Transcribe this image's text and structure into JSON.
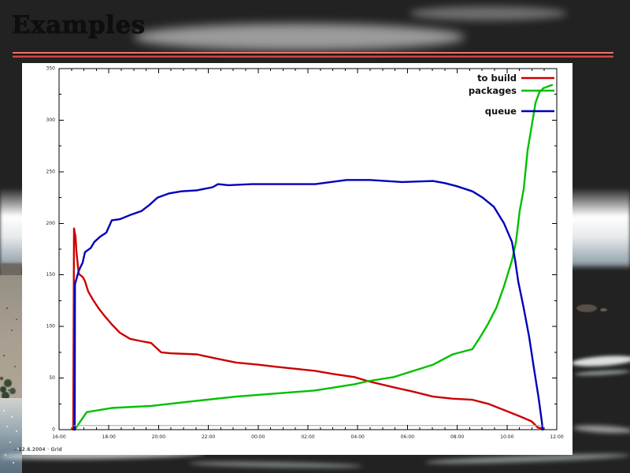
{
  "slide": {
    "title": "Examples",
    "footer_note": "– 12.6.2004 · Grid"
  },
  "colors": {
    "divider_red": "#c94b44",
    "divider_dark": "#27100e",
    "series_to_build": "#cc0000",
    "series_packages": "#00c000",
    "series_queue": "#0000bb",
    "axis": "#000000",
    "tick_label": "#222222"
  },
  "chart": {
    "legend": {
      "items": [
        {
          "label": "to build",
          "color": "#cc0000"
        },
        {
          "label": "packages",
          "color": "#00c000"
        },
        {
          "label": "queue",
          "color": "#0000bb"
        }
      ]
    }
  },
  "chart_data": {
    "type": "line",
    "title": "",
    "xlabel": "",
    "ylabel": "",
    "grid": false,
    "legend_position": "top-right-inside",
    "x_axis": {
      "type": "time",
      "range": [
        0,
        20
      ],
      "tick_hours": [
        0,
        2,
        4,
        6,
        8,
        10,
        12,
        14,
        16,
        18,
        20
      ],
      "labels": [
        "16:00",
        "18:00",
        "20:00",
        "22:00",
        "00:00",
        "02:00",
        "04:00",
        "06:00",
        "08:00",
        "10:00",
        "12:00"
      ],
      "minor_step": 0.5
    },
    "y_axis": {
      "min": 0,
      "max": 350,
      "tick_step": 50,
      "minor_step": 25,
      "labels": [
        "0",
        "50",
        "100",
        "150",
        "200",
        "250",
        "300",
        "350"
      ]
    },
    "series": [
      {
        "name": "to build",
        "color": "#cc0000",
        "width": 2.4,
        "points": [
          [
            0.57,
            0
          ],
          [
            0.6,
            195
          ],
          [
            0.66,
            187
          ],
          [
            0.7,
            172
          ],
          [
            0.79,
            151
          ],
          [
            0.95,
            148
          ],
          [
            1.04,
            144
          ],
          [
            1.17,
            134
          ],
          [
            1.36,
            126
          ],
          [
            1.58,
            118
          ],
          [
            1.8,
            111
          ],
          [
            2.12,
            102
          ],
          [
            2.44,
            94
          ],
          [
            2.85,
            88
          ],
          [
            3.26,
            86
          ],
          [
            3.7,
            84
          ],
          [
            4.1,
            75
          ],
          [
            4.5,
            74
          ],
          [
            5.54,
            73
          ],
          [
            6.3,
            69
          ],
          [
            7.12,
            65
          ],
          [
            8.0,
            63
          ],
          [
            8.7,
            61
          ],
          [
            9.5,
            59
          ],
          [
            10.29,
            57
          ],
          [
            11.0,
            54
          ],
          [
            11.87,
            51
          ],
          [
            12.41,
            47
          ],
          [
            13.45,
            41
          ],
          [
            14.2,
            37
          ],
          [
            15.03,
            32
          ],
          [
            15.8,
            30
          ],
          [
            16.61,
            29
          ],
          [
            17.25,
            25
          ],
          [
            17.88,
            19
          ],
          [
            18.51,
            13
          ],
          [
            18.99,
            8
          ],
          [
            19.24,
            2
          ],
          [
            19.46,
            1
          ]
        ]
      },
      {
        "name": "packages",
        "color": "#00c000",
        "width": 2.4,
        "points": [
          [
            0.63,
            0
          ],
          [
            1.11,
            17
          ],
          [
            2.12,
            21
          ],
          [
            3.7,
            23
          ],
          [
            5.54,
            28
          ],
          [
            7.12,
            32
          ],
          [
            8.7,
            35
          ],
          [
            10.29,
            38
          ],
          [
            11.87,
            44
          ],
          [
            12.41,
            47
          ],
          [
            13.45,
            51
          ],
          [
            15.03,
            63
          ],
          [
            15.82,
            73
          ],
          [
            16.61,
            78
          ],
          [
            16.93,
            90
          ],
          [
            17.25,
            103
          ],
          [
            17.57,
            118
          ],
          [
            17.88,
            139
          ],
          [
            18.2,
            164
          ],
          [
            18.36,
            182
          ],
          [
            18.51,
            212
          ],
          [
            18.67,
            233
          ],
          [
            18.83,
            271
          ],
          [
            18.99,
            294
          ],
          [
            19.15,
            317
          ],
          [
            19.3,
            327
          ],
          [
            19.46,
            331
          ],
          [
            19.68,
            333
          ],
          [
            19.81,
            334
          ]
        ]
      },
      {
        "name": "queue",
        "color": "#0000bb",
        "width": 2.4,
        "points": [
          [
            0.63,
            0
          ],
          [
            0.64,
            141
          ],
          [
            0.79,
            154
          ],
          [
            0.95,
            162
          ],
          [
            1.04,
            172
          ],
          [
            1.27,
            176
          ],
          [
            1.42,
            182
          ],
          [
            1.65,
            187
          ],
          [
            1.9,
            191
          ],
          [
            2.12,
            203
          ],
          [
            2.44,
            204
          ],
          [
            2.85,
            208
          ],
          [
            3.32,
            212
          ],
          [
            3.64,
            218
          ],
          [
            3.96,
            225
          ],
          [
            4.43,
            229
          ],
          [
            4.91,
            231
          ],
          [
            5.54,
            232
          ],
          [
            6.17,
            235
          ],
          [
            6.39,
            238
          ],
          [
            6.8,
            237
          ],
          [
            7.75,
            238
          ],
          [
            9.02,
            238
          ],
          [
            10.29,
            238
          ],
          [
            11.55,
            242
          ],
          [
            12.5,
            242
          ],
          [
            13.77,
            240
          ],
          [
            15.03,
            241
          ],
          [
            15.51,
            239
          ],
          [
            15.98,
            236
          ],
          [
            16.61,
            231
          ],
          [
            17.02,
            225
          ],
          [
            17.47,
            216
          ],
          [
            17.88,
            200
          ],
          [
            18.2,
            182
          ],
          [
            18.33,
            164
          ],
          [
            18.45,
            144
          ],
          [
            18.67,
            118
          ],
          [
            18.89,
            90
          ],
          [
            19.08,
            60
          ],
          [
            19.27,
            31
          ],
          [
            19.4,
            8
          ],
          [
            19.43,
            0
          ]
        ]
      },
      {
        "name": "(unlabeled gray baseline)",
        "color": "#aaaaaa",
        "width": 1.2,
        "points": [
          [
            0.6,
            4
          ],
          [
            19.4,
            4
          ]
        ]
      }
    ]
  }
}
